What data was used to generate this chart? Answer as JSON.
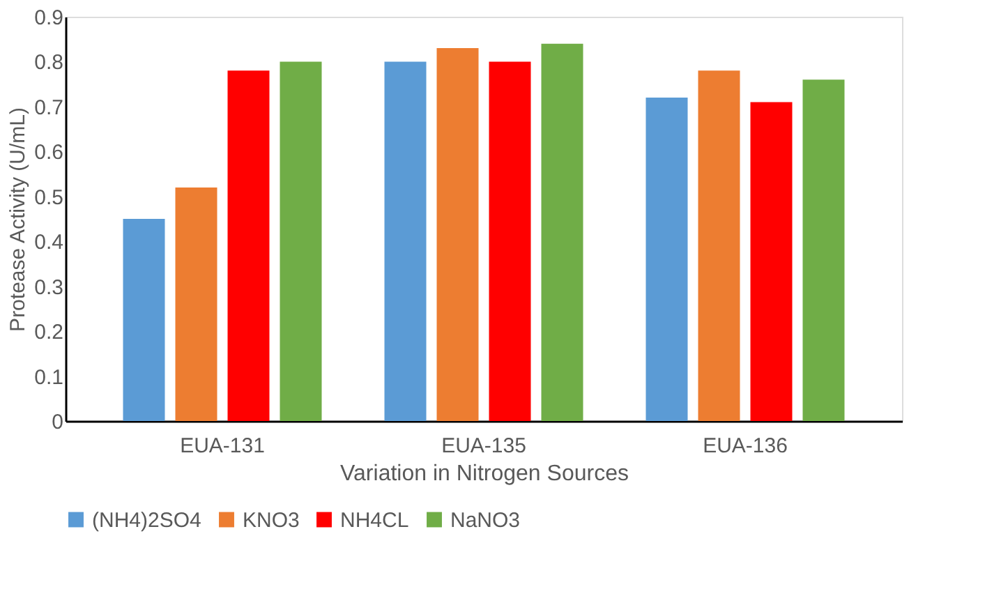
{
  "chart_data": {
    "type": "bar",
    "xlabel": "Variation in Nitrogen Sources",
    "ylabel": "Protease Activity (U/mL)",
    "categories": [
      "EUA-131",
      "EUA-135",
      "EUA-136"
    ],
    "series": [
      {
        "name": "(NH4)2SO4",
        "color": "#5b9bd5",
        "values": [
          0.45,
          0.8,
          0.72
        ]
      },
      {
        "name": "KNO3",
        "color": "#ed7d31",
        "values": [
          0.52,
          0.83,
          0.78
        ]
      },
      {
        "name": "NH4CL",
        "color": "#ff0000",
        "values": [
          0.78,
          0.8,
          0.71
        ]
      },
      {
        "name": "NaNO3",
        "color": "#70ad47",
        "values": [
          0.8,
          0.84,
          0.76
        ]
      }
    ],
    "ylim": [
      0,
      0.9
    ],
    "yticks": [
      0,
      0.1,
      0.2,
      0.3,
      0.4,
      0.5,
      0.6,
      0.7,
      0.8,
      0.9
    ],
    "grid": false,
    "legend": "bottom"
  }
}
